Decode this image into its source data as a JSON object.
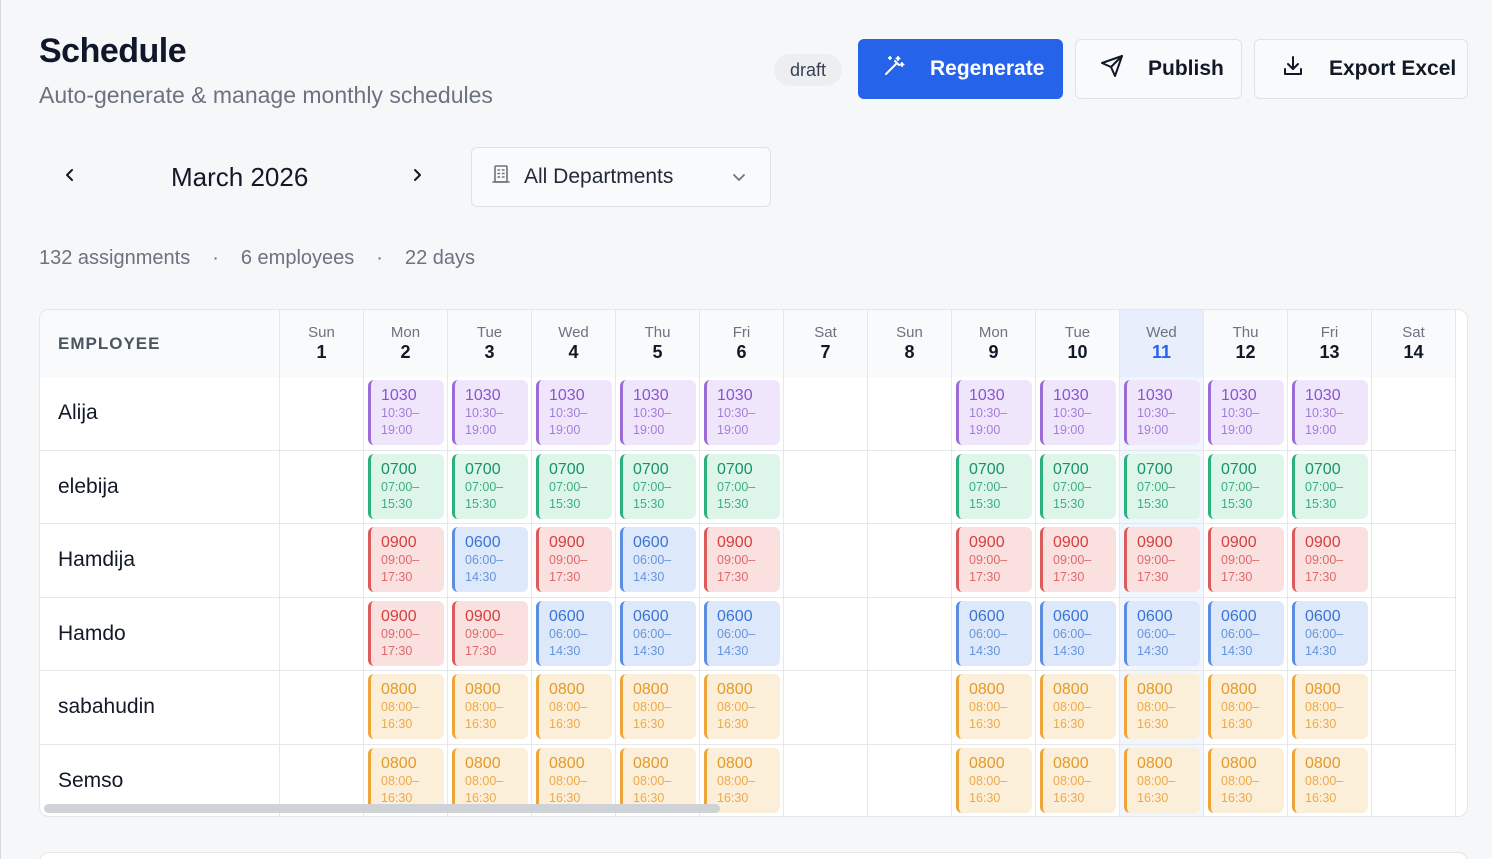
{
  "header": {
    "title": "Schedule",
    "subtitle": "Auto-generate & manage monthly schedules",
    "status_badge": "draft",
    "regenerate_label": "Regenerate",
    "publish_label": "Publish",
    "export_label": "Export Excel"
  },
  "toolbar": {
    "month": "March 2026",
    "department": "All Departments"
  },
  "stats": {
    "assignments": "132 assignments",
    "employees": "6 employees",
    "days": "22 days",
    "separator": "·"
  },
  "grid": {
    "employee_header": "EMPLOYEE",
    "days": [
      {
        "dow": "Sun",
        "num": "1"
      },
      {
        "dow": "Mon",
        "num": "2"
      },
      {
        "dow": "Tue",
        "num": "3"
      },
      {
        "dow": "Wed",
        "num": "4"
      },
      {
        "dow": "Thu",
        "num": "5"
      },
      {
        "dow": "Fri",
        "num": "6"
      },
      {
        "dow": "Sat",
        "num": "7"
      },
      {
        "dow": "Sun",
        "num": "8"
      },
      {
        "dow": "Mon",
        "num": "9"
      },
      {
        "dow": "Tue",
        "num": "10"
      },
      {
        "dow": "Wed",
        "num": "11",
        "today": true
      },
      {
        "dow": "Thu",
        "num": "12"
      },
      {
        "dow": "Fri",
        "num": "13"
      },
      {
        "dow": "Sat",
        "num": "14"
      }
    ],
    "shift_types": {
      "1030": {
        "code": "1030",
        "time": "10:30–19:00",
        "color": "purple"
      },
      "0700": {
        "code": "0700",
        "time": "07:00–15:30",
        "color": "green"
      },
      "0900": {
        "code": "0900",
        "time": "09:00–17:30",
        "color": "red"
      },
      "0600": {
        "code": "0600",
        "time": "06:00–14:30",
        "color": "blue"
      },
      "0800": {
        "code": "0800",
        "time": "08:00–16:30",
        "color": "orange"
      }
    },
    "employees": [
      {
        "name": "Alija",
        "shifts": [
          null,
          "1030",
          "1030",
          "1030",
          "1030",
          "1030",
          null,
          null,
          "1030",
          "1030",
          "1030",
          "1030",
          "1030",
          null
        ]
      },
      {
        "name": "elebija",
        "shifts": [
          null,
          "0700",
          "0700",
          "0700",
          "0700",
          "0700",
          null,
          null,
          "0700",
          "0700",
          "0700",
          "0700",
          "0700",
          null
        ]
      },
      {
        "name": "Hamdija",
        "shifts": [
          null,
          "0900",
          "0600",
          "0900",
          "0600",
          "0900",
          null,
          null,
          "0900",
          "0900",
          "0900",
          "0900",
          "0900",
          null
        ]
      },
      {
        "name": "Hamdo",
        "shifts": [
          null,
          "0900",
          "0900",
          "0600",
          "0600",
          "0600",
          null,
          null,
          "0600",
          "0600",
          "0600",
          "0600",
          "0600",
          null
        ]
      },
      {
        "name": "sabahudin",
        "shifts": [
          null,
          "0800",
          "0800",
          "0800",
          "0800",
          "0800",
          null,
          null,
          "0800",
          "0800",
          "0800",
          "0800",
          "0800",
          null
        ]
      },
      {
        "name": "Semso",
        "shifts": [
          null,
          "0800",
          "0800",
          "0800",
          "0800",
          "0800",
          null,
          null,
          "0800",
          "0800",
          "0800",
          "0800",
          "0800",
          null
        ]
      }
    ]
  }
}
